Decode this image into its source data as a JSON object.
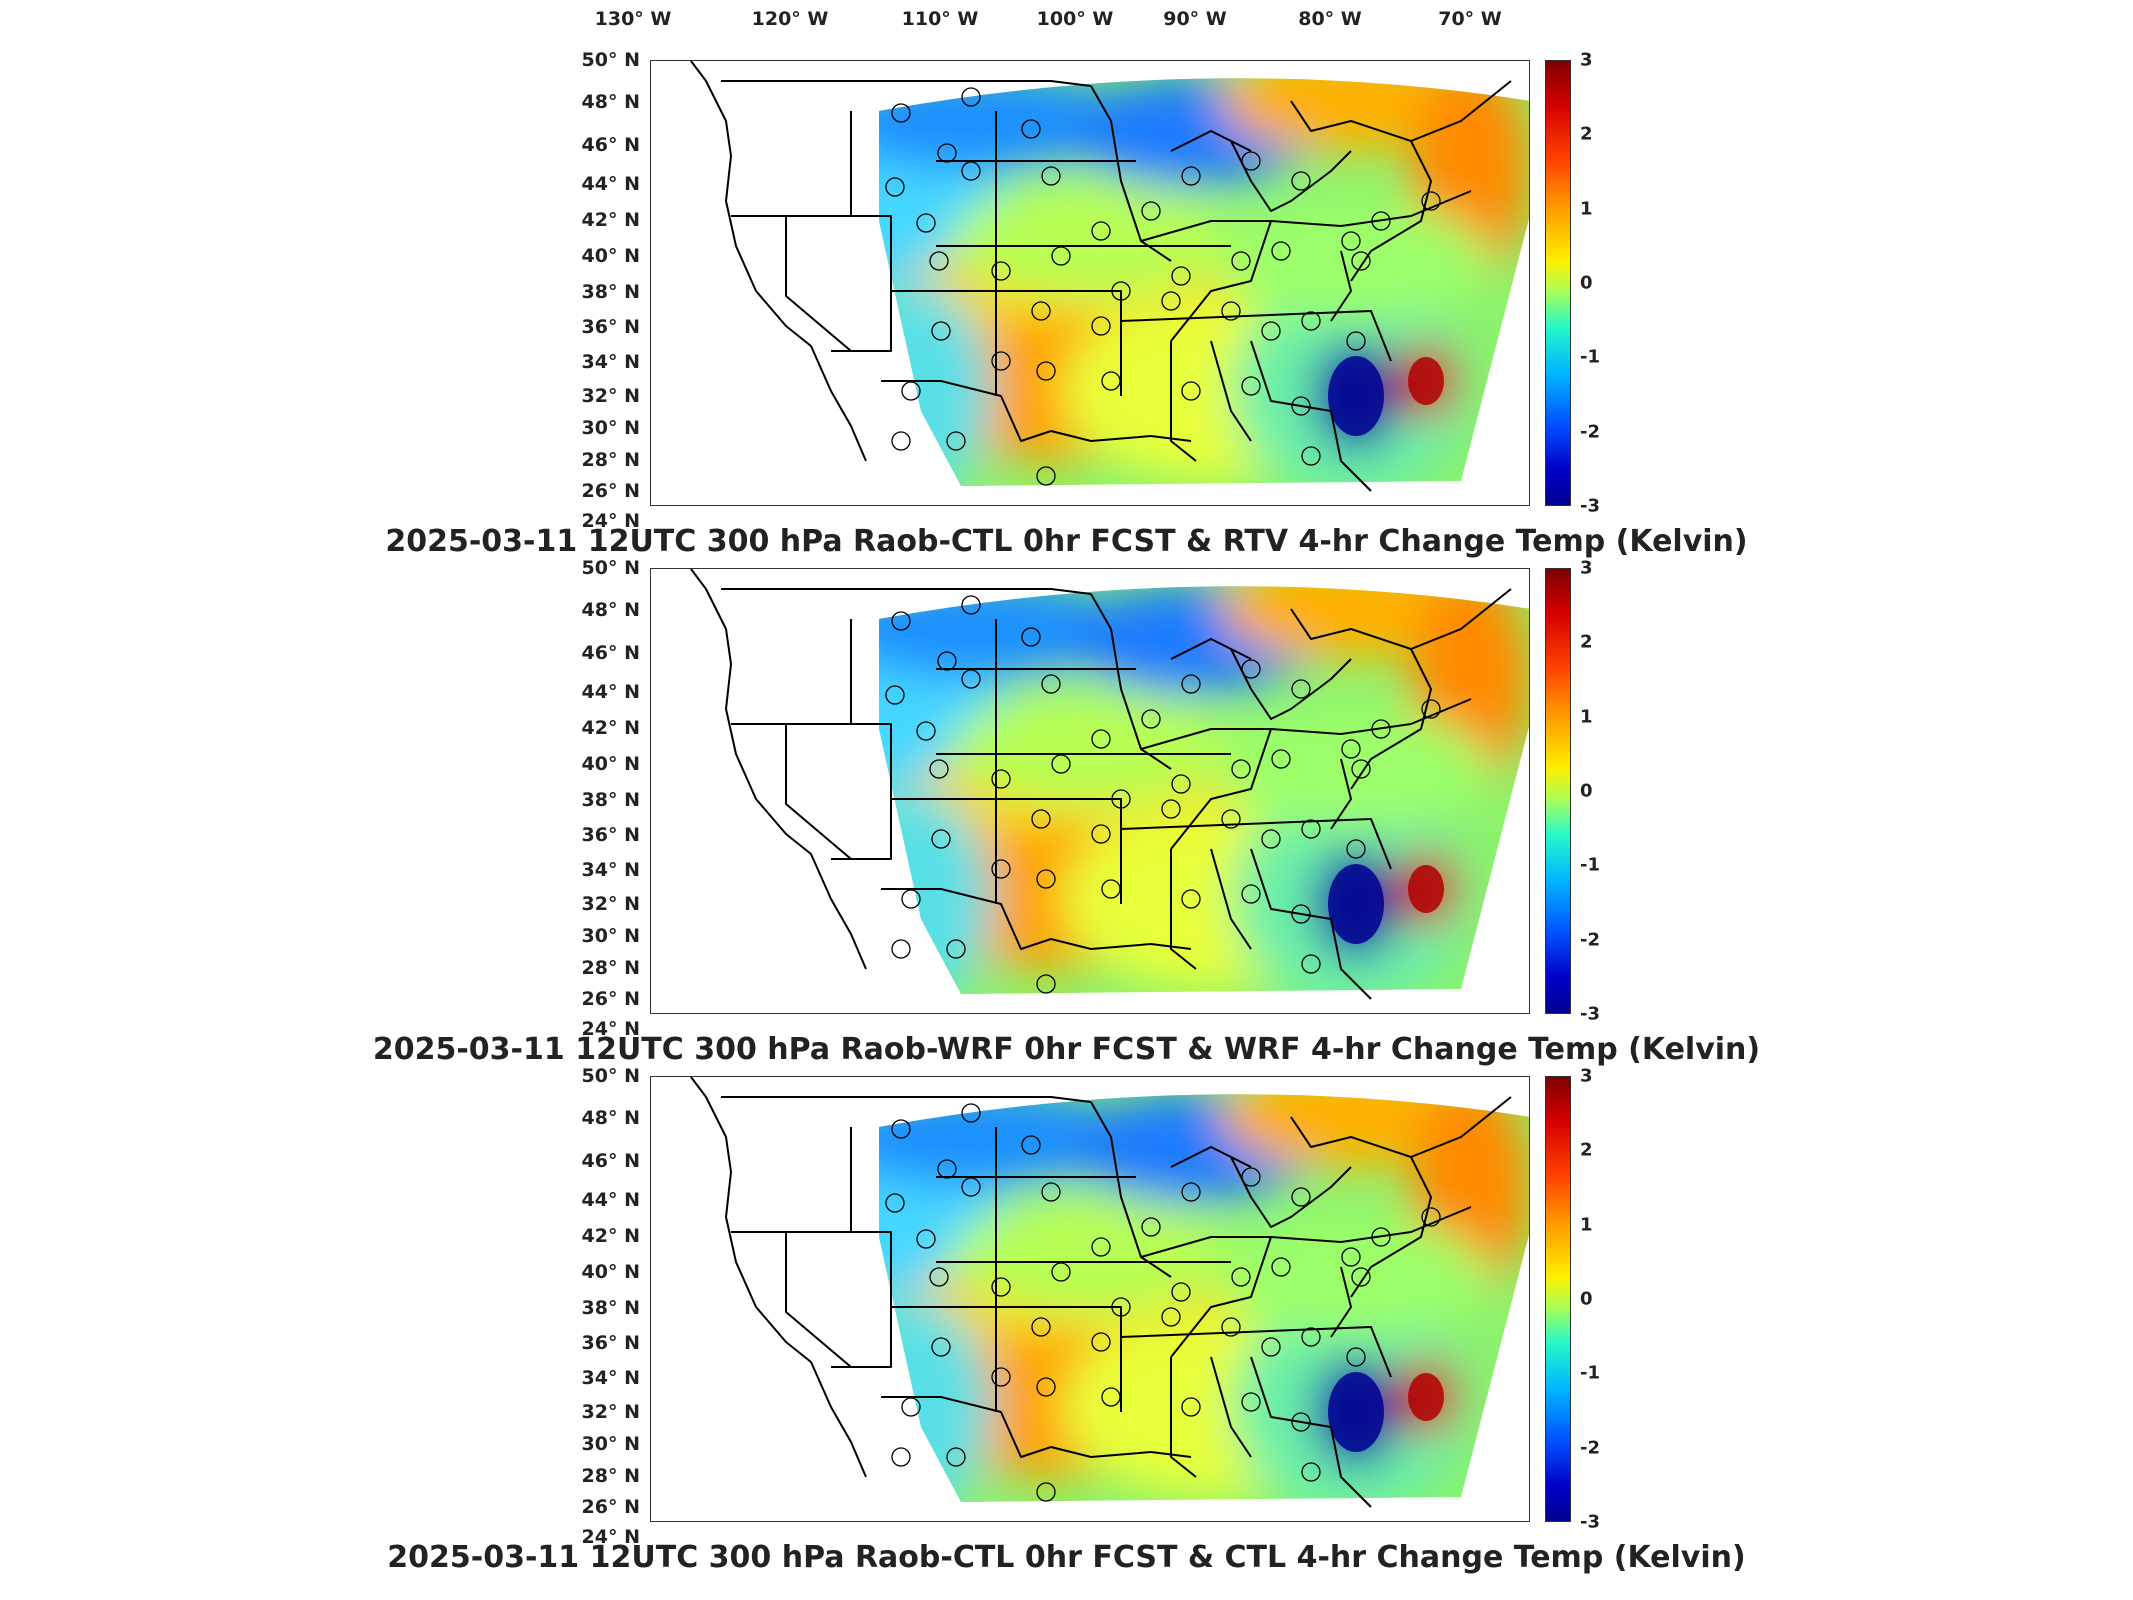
{
  "longitude_labels": [
    "130° W",
    "120° W",
    "110° W",
    "100° W",
    "90° W",
    "80° W",
    "70° W"
  ],
  "latitude_labels": [
    "50° N",
    "48° N",
    "46° N",
    "44° N",
    "42° N",
    "40° N",
    "38° N",
    "36° N",
    "34° N",
    "32° N",
    "30° N",
    "28° N",
    "26° N",
    "24° N"
  ],
  "colorbar": {
    "ticks": [
      "3",
      "2",
      "1",
      "0",
      "-1",
      "-2",
      "-3"
    ],
    "range": [
      -3,
      3
    ],
    "colors": [
      "#7f0000",
      "#ff4000",
      "#ffee00",
      "#27f7c8",
      "#0050ff",
      "#00008f"
    ]
  },
  "panels": [
    {
      "title": "2025-03-11 12UTC 300 hPa Raob-CTL 0hr FCST & RTV 4-hr Change Temp (Kelvin)"
    },
    {
      "title": "2025-03-11 12UTC 300 hPa Raob-WRF 0hr FCST & WRF 4-hr Change Temp (Kelvin)"
    },
    {
      "title": "2025-03-11 12UTC 300 hPa Raob-CTL 0hr FCST & CTL 4-hr Change Temp (Kelvin)"
    }
  ]
}
